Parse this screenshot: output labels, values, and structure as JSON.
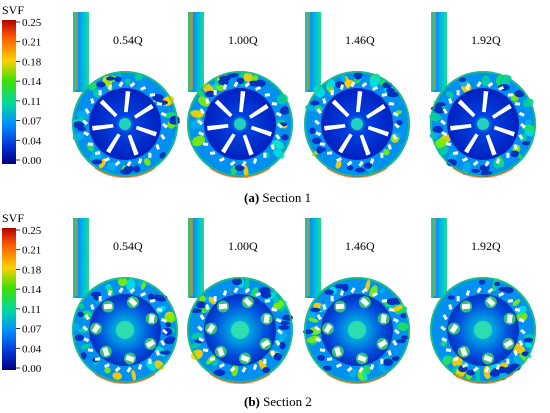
{
  "legend": {
    "title": "SVF",
    "ticks": [
      "0.25",
      "0.21",
      "0.18",
      "0.14",
      "0.11",
      "0.07",
      "0.04",
      "0.00"
    ],
    "colors": [
      "#b40000",
      "#ff5a00",
      "#ffd000",
      "#40e000",
      "#00d8a0",
      "#0090ff",
      "#0030d0",
      "#000080"
    ]
  },
  "section1": {
    "caption_letter": "(a)",
    "caption_text": " Section 1",
    "panels": [
      {
        "label": "0.54Q"
      },
      {
        "label": "1.00Q"
      },
      {
        "label": "1.46Q"
      },
      {
        "label": "1.92Q"
      }
    ]
  },
  "section2": {
    "caption_letter": "(b)",
    "caption_text": " Section 2",
    "panels": [
      {
        "label": "0.54Q"
      },
      {
        "label": "1.00Q"
      },
      {
        "label": "1.46Q"
      },
      {
        "label": "1.92Q"
      }
    ]
  }
}
